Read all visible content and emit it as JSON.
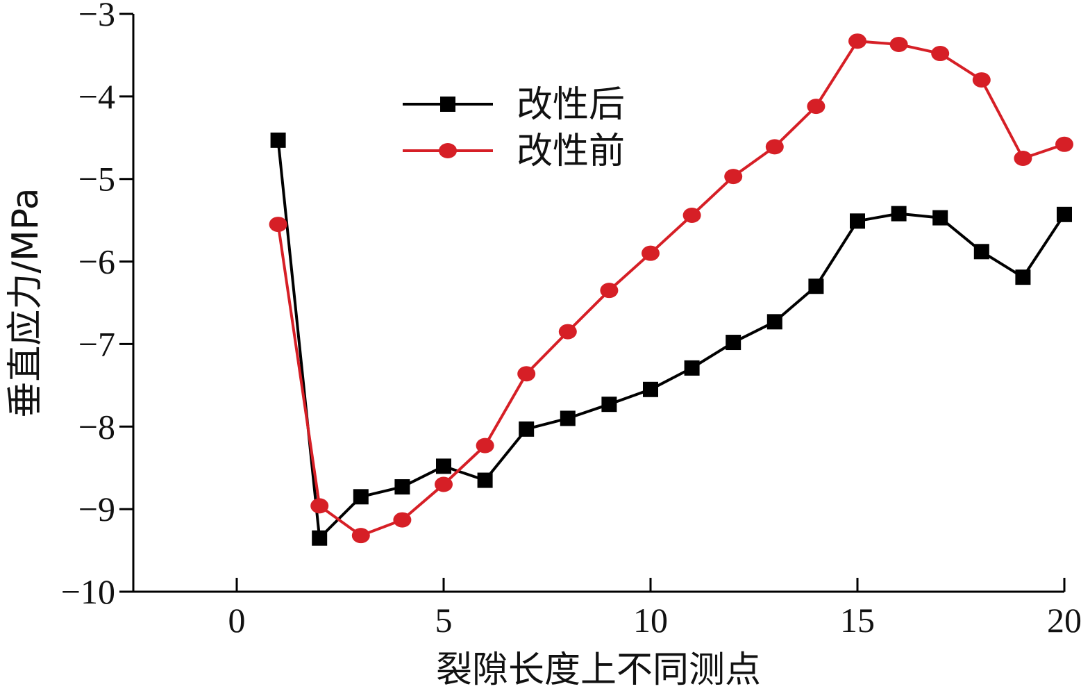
{
  "chart_data": {
    "type": "line",
    "xlabel": "裂隙长度上不同测点",
    "ylabel": "垂直应力/MPa",
    "xlim": [
      -2.5,
      20
    ],
    "ylim": [
      -10,
      -3
    ],
    "xticks": [
      0,
      5,
      10,
      15,
      20
    ],
    "xtick_labels": [
      "0",
      "5",
      "10",
      "15",
      "20"
    ],
    "yticks": [
      -3,
      -4,
      -5,
      -6,
      -7,
      -8,
      -9,
      -10
    ],
    "ytick_labels": [
      "−3",
      "−4",
      "−5",
      "−6",
      "−7",
      "−8",
      "−9",
      "−10"
    ],
    "grid": false,
    "legend_position": "top-center",
    "x": [
      1,
      2,
      3,
      4,
      5,
      6,
      7,
      8,
      9,
      10,
      11,
      12,
      13,
      14,
      15,
      16,
      17,
      18,
      19,
      20
    ],
    "series": [
      {
        "name": "改性后",
        "color": "#000000",
        "marker": "square",
        "values": [
          -4.53,
          -9.35,
          -8.85,
          -8.73,
          -8.48,
          -8.65,
          -8.03,
          -7.9,
          -7.73,
          -7.55,
          -7.29,
          -6.98,
          -6.73,
          -6.3,
          -5.51,
          -5.42,
          -5.47,
          -5.88,
          -6.19,
          -5.43
        ]
      },
      {
        "name": "改性前",
        "color": "#d61f26",
        "marker": "circle",
        "values": [
          -5.55,
          -8.96,
          -9.32,
          -9.13,
          -8.7,
          -8.23,
          -7.36,
          -6.85,
          -6.35,
          -5.9,
          -5.44,
          -4.97,
          -4.61,
          -4.12,
          -3.33,
          -3.37,
          -3.48,
          -3.8,
          -4.75,
          -4.58
        ]
      }
    ]
  }
}
